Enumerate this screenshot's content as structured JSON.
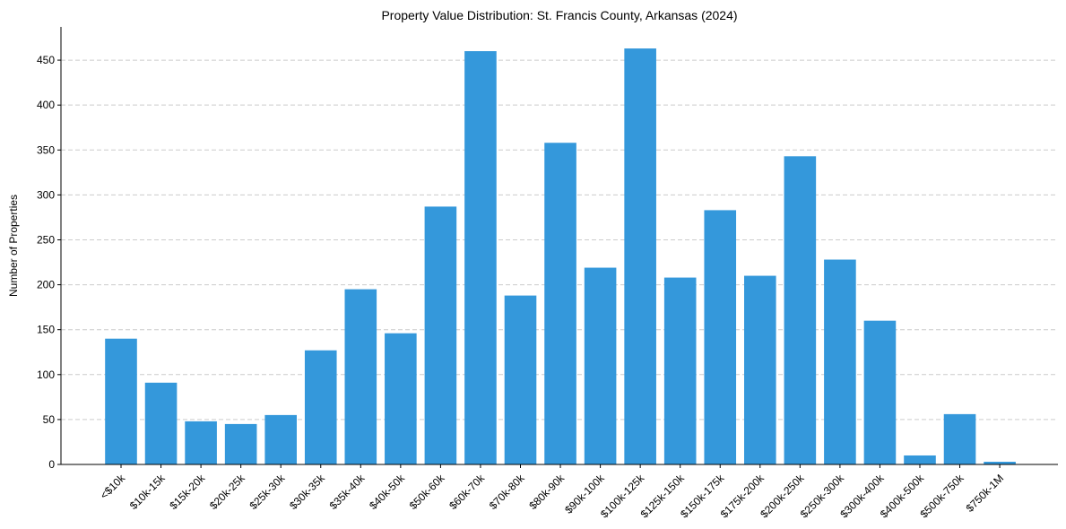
{
  "chart_data": {
    "type": "bar",
    "title": "Property Value Distribution: St. Francis County, Arkansas (2024)",
    "xlabel": "",
    "ylabel": "Number of Properties",
    "ylim": [
      0,
      487
    ],
    "yticks": [
      0,
      50,
      100,
      150,
      200,
      250,
      300,
      350,
      400,
      450
    ],
    "grid": "y-dashed",
    "bar_color": "#3498db",
    "categories": [
      "<$10k",
      "$10k-15k",
      "$15k-20k",
      "$20k-25k",
      "$25k-30k",
      "$30k-35k",
      "$35k-40k",
      "$40k-50k",
      "$50k-60k",
      "$60k-70k",
      "$70k-80k",
      "$80k-90k",
      "$90k-100k",
      "$100k-125k",
      "$125k-150k",
      "$150k-175k",
      "$175k-200k",
      "$200k-250k",
      "$250k-300k",
      "$300k-400k",
      "$400k-500k",
      "$500k-750k",
      "$750k-1M"
    ],
    "values": [
      140,
      91,
      48,
      45,
      55,
      127,
      195,
      146,
      287,
      460,
      188,
      358,
      219,
      463,
      208,
      283,
      210,
      343,
      228,
      160,
      10,
      56,
      3
    ]
  }
}
